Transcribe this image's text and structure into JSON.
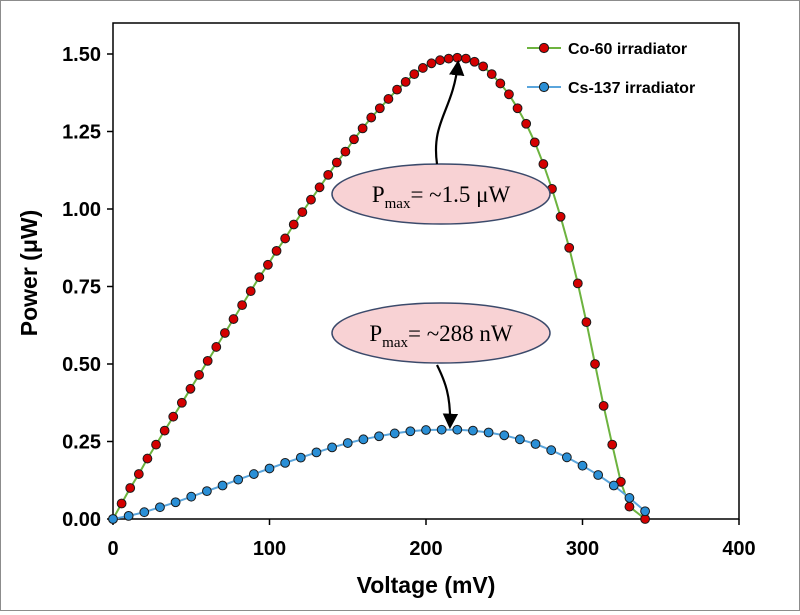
{
  "chart_data": {
    "type": "line",
    "xlabel": "Voltage (mV)",
    "ylabel": "Power  (μW)",
    "xlim": [
      0,
      400
    ],
    "ylim": [
      0,
      1.6
    ],
    "x_ticks": [
      "0",
      "100",
      "200",
      "300",
      "400"
    ],
    "y_ticks": [
      "0.00",
      "0.25",
      "0.50",
      "0.75",
      "1.00",
      "1.25",
      "1.50"
    ],
    "grid": false,
    "legend_position": "top-right",
    "series": [
      {
        "name": "Co-60 irradiator",
        "marker_color": "#d40000",
        "line_color": "#6db33f",
        "x": [
          0,
          5.5,
          11,
          16.5,
          22,
          27.5,
          33,
          38.5,
          44,
          49.5,
          55,
          60.5,
          66,
          71.5,
          77,
          82.5,
          88,
          93.5,
          99,
          104.5,
          110,
          115.5,
          121,
          126.5,
          132,
          137.5,
          143,
          148.5,
          154,
          159.5,
          165,
          170.5,
          176,
          181.5,
          187,
          192.5,
          198,
          203.5,
          209,
          214.5,
          220,
          225.5,
          231,
          236.5,
          242,
          247.5,
          253,
          258.5,
          264,
          269.5,
          275,
          280.5,
          286,
          291.5,
          297,
          302.5,
          308,
          313.5,
          319,
          324.5,
          330,
          340
        ],
        "y": [
          0.0,
          0.05,
          0.1,
          0.145,
          0.195,
          0.24,
          0.285,
          0.33,
          0.375,
          0.42,
          0.465,
          0.51,
          0.555,
          0.6,
          0.645,
          0.69,
          0.735,
          0.78,
          0.82,
          0.865,
          0.905,
          0.95,
          0.99,
          1.03,
          1.07,
          1.11,
          1.15,
          1.185,
          1.225,
          1.26,
          1.295,
          1.325,
          1.355,
          1.385,
          1.41,
          1.435,
          1.455,
          1.47,
          1.48,
          1.485,
          1.488,
          1.485,
          1.475,
          1.46,
          1.435,
          1.405,
          1.37,
          1.325,
          1.275,
          1.215,
          1.145,
          1.065,
          0.975,
          0.875,
          0.76,
          0.635,
          0.5,
          0.365,
          0.24,
          0.12,
          0.04,
          0.0
        ]
      },
      {
        "name": "Cs-137 irradiator",
        "marker_color": "#2a8fd6",
        "line_color": "#5aa5dc",
        "x": [
          0,
          10,
          20,
          30,
          40,
          50,
          60,
          70,
          80,
          90,
          100,
          110,
          120,
          130,
          140,
          150,
          160,
          170,
          180,
          190,
          200,
          210,
          220,
          230,
          240,
          250,
          260,
          270,
          280,
          290,
          300,
          310,
          320,
          330,
          340
        ],
        "y": [
          0.0,
          0.01,
          0.022,
          0.038,
          0.054,
          0.072,
          0.09,
          0.108,
          0.127,
          0.145,
          0.163,
          0.181,
          0.198,
          0.215,
          0.231,
          0.245,
          0.257,
          0.267,
          0.276,
          0.283,
          0.287,
          0.288,
          0.288,
          0.285,
          0.279,
          0.27,
          0.257,
          0.242,
          0.222,
          0.199,
          0.172,
          0.142,
          0.108,
          0.068,
          0.025
        ]
      }
    ],
    "annotations": [
      {
        "base": "P",
        "sub": "max",
        "text": "= ~1.5 μW",
        "target_series": 0
      },
      {
        "base": "P",
        "sub": "max",
        "text": "= ~288 nW",
        "target_series": 1
      }
    ]
  }
}
